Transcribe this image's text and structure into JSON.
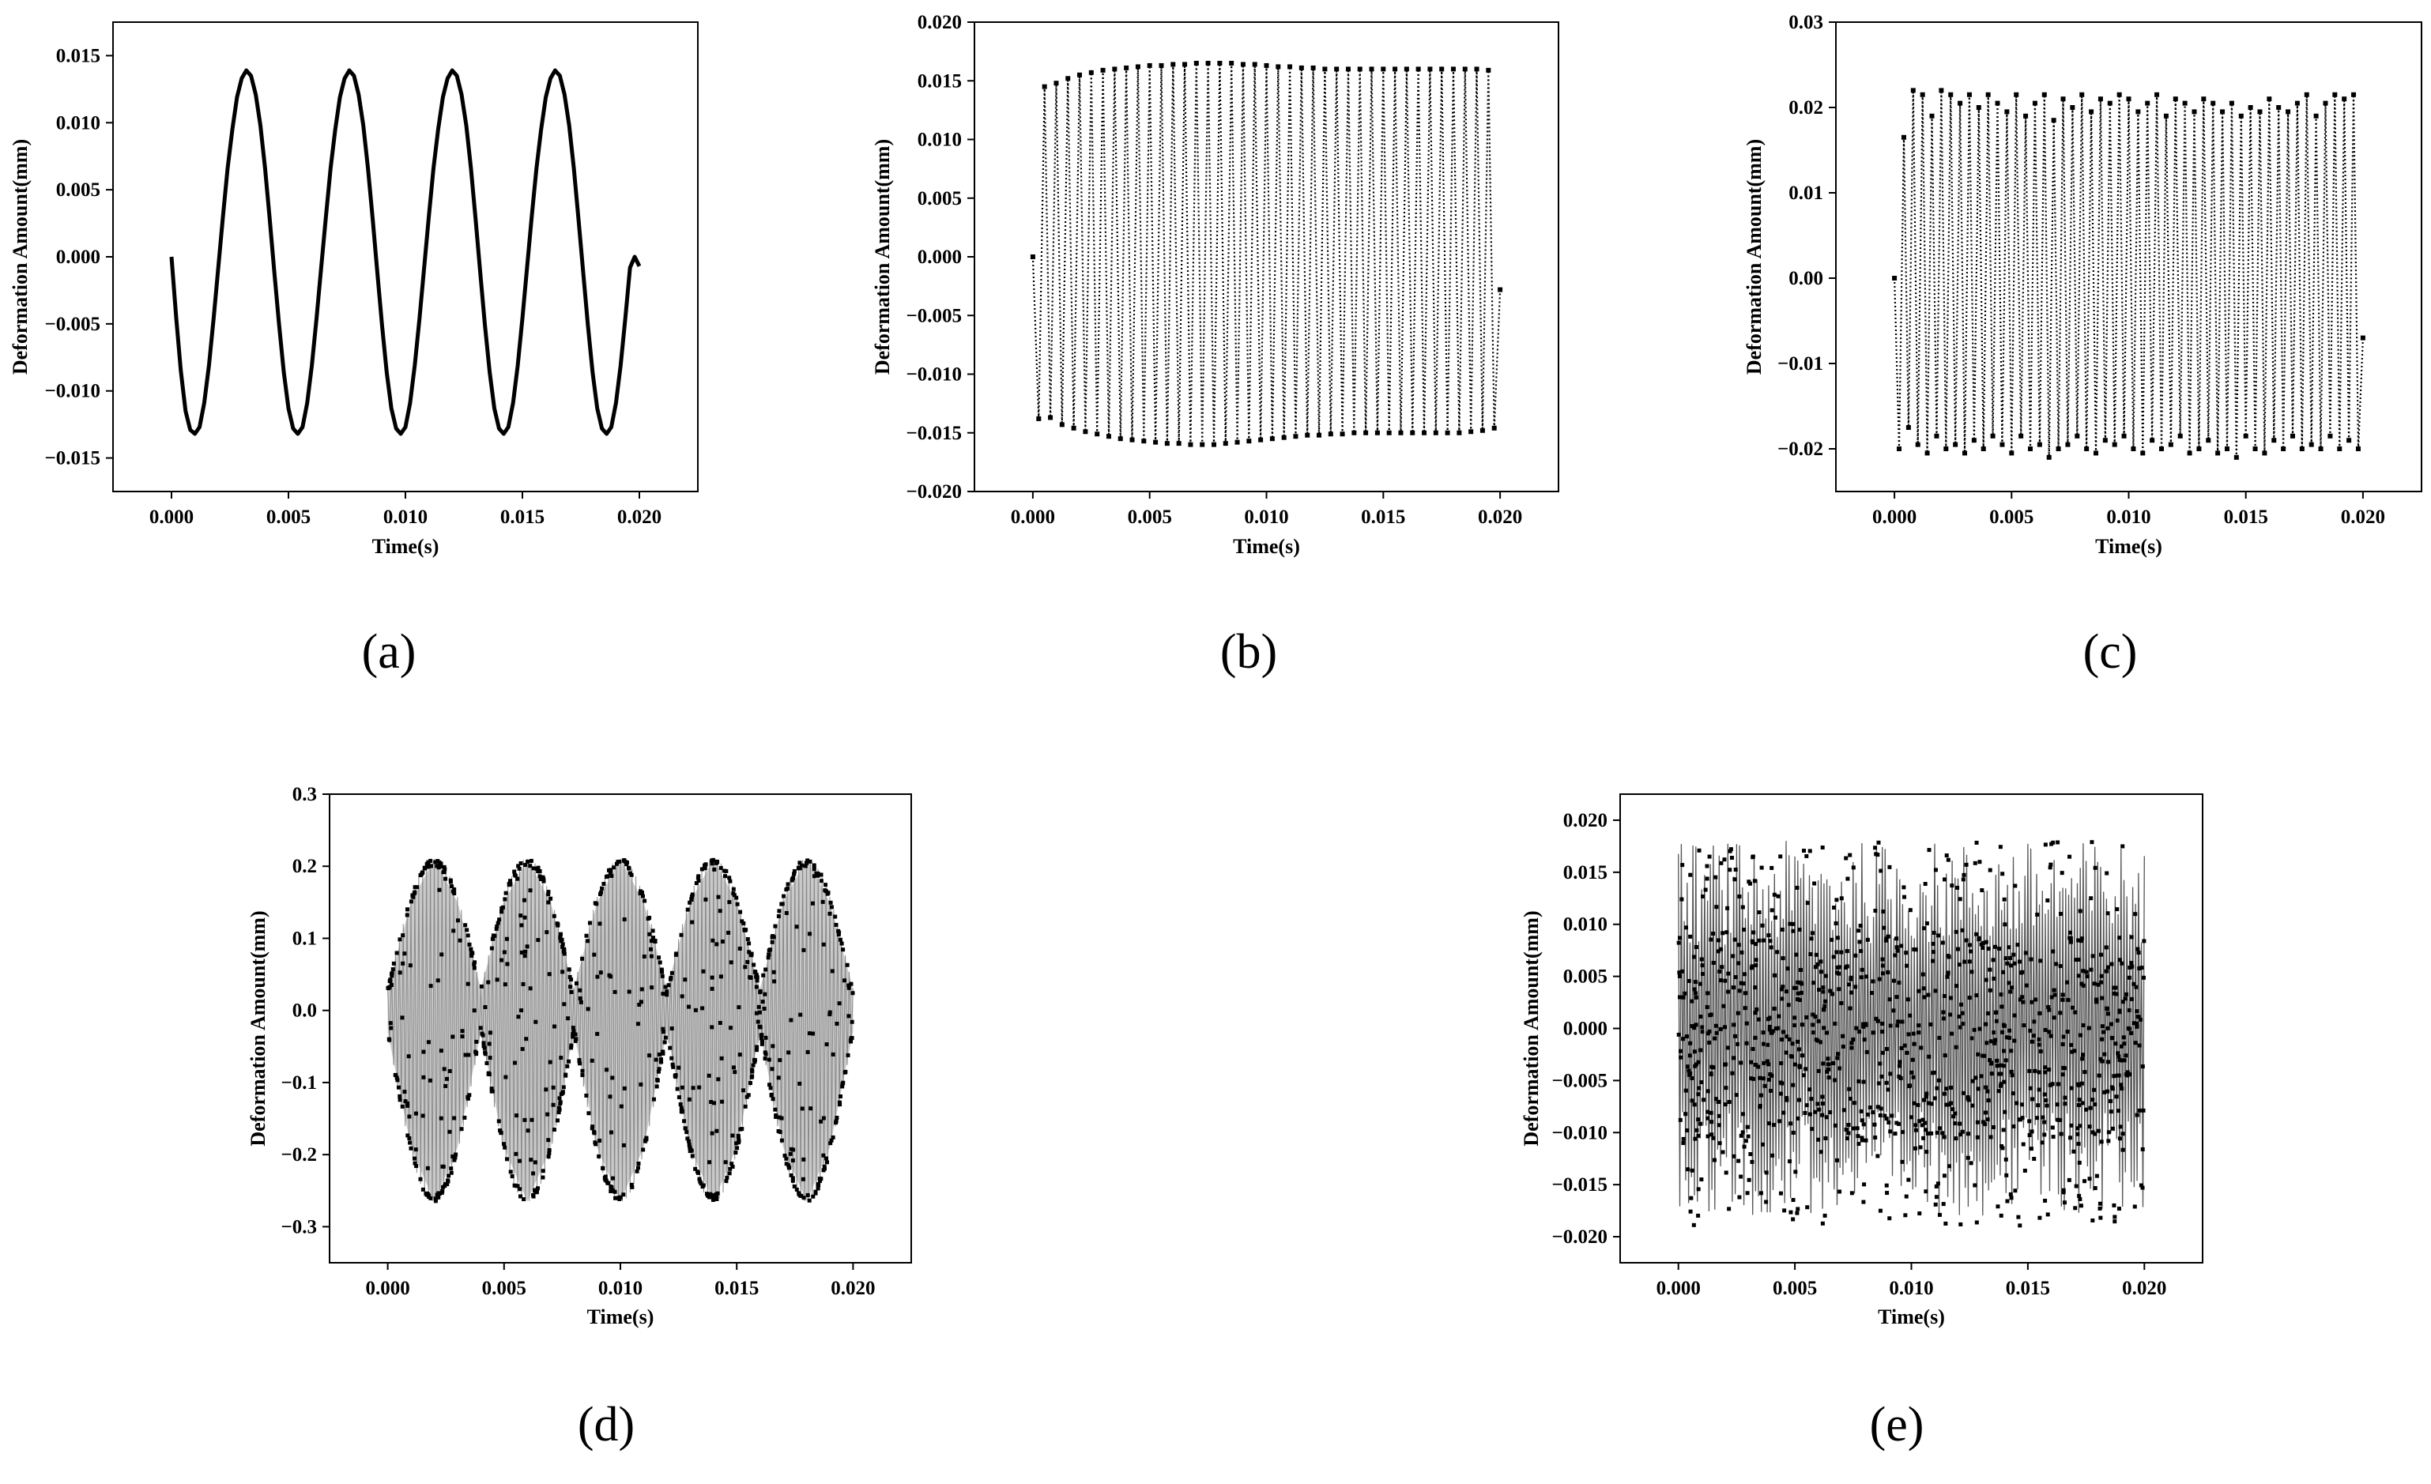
{
  "figure": {
    "panels": [
      "(a)",
      "(b)",
      "(c)",
      "(d)",
      "(e)"
    ]
  },
  "chart_data": [
    {
      "id": "a",
      "type": "line",
      "panel_label": "(a)",
      "xlabel": "Time(s)",
      "ylabel": "Deformation Amount(mm)",
      "xlim": [
        -0.0025,
        0.0225
      ],
      "ylim": [
        -0.0175,
        0.0175
      ],
      "xticks": [
        0.0,
        0.005,
        0.01,
        0.015,
        0.02
      ],
      "xtick_labels": [
        "0.000",
        "0.005",
        "0.010",
        "0.015",
        "0.020"
      ],
      "yticks": [
        -0.015,
        -0.01,
        -0.005,
        0.0,
        0.005,
        0.01,
        0.015
      ],
      "ytick_labels": [
        "−0.015",
        "−0.010",
        "−0.005",
        "0.000",
        "0.005",
        "0.010",
        "0.015"
      ],
      "grid": false,
      "series": [
        {
          "style": "solid-line",
          "color": "#000000",
          "x": [
            0.0,
            0.0002,
            0.0004,
            0.0006,
            0.0008,
            0.001,
            0.0012,
            0.0014,
            0.0016,
            0.0018,
            0.002,
            0.0022,
            0.0024,
            0.0026,
            0.0028,
            0.003,
            0.0032,
            0.0034,
            0.0036,
            0.0038,
            0.004,
            0.0042,
            0.0044,
            0.0046,
            0.0048,
            0.005,
            0.0052,
            0.0054,
            0.0056,
            0.0058,
            0.006,
            0.0062,
            0.0064,
            0.0066,
            0.0068,
            0.007,
            0.0072,
            0.0074,
            0.0076,
            0.0078,
            0.008,
            0.0082,
            0.0084,
            0.0086,
            0.0088,
            0.009,
            0.0092,
            0.0094,
            0.0096,
            0.0098,
            0.01,
            0.0102,
            0.0104,
            0.0106,
            0.0108,
            0.011,
            0.0112,
            0.0114,
            0.0116,
            0.0118,
            0.012,
            0.0122,
            0.0124,
            0.0126,
            0.0128,
            0.013,
            0.0132,
            0.0134,
            0.0136,
            0.0138,
            0.014,
            0.0142,
            0.0144,
            0.0146,
            0.0148,
            0.015,
            0.0152,
            0.0154,
            0.0156,
            0.0158,
            0.016,
            0.0162,
            0.0164,
            0.0166,
            0.0168,
            0.017,
            0.0172,
            0.0174,
            0.0176,
            0.0178,
            0.018,
            0.0182,
            0.0184,
            0.0186,
            0.0188,
            0.019,
            0.0192,
            0.0194,
            0.0196,
            0.0198,
            0.02
          ],
          "y": [
            0.0,
            -0.0045,
            -0.0085,
            -0.0115,
            -0.0129,
            -0.0132,
            -0.0127,
            -0.0109,
            -0.0081,
            -0.0046,
            -0.0008,
            0.003,
            0.0066,
            0.0095,
            0.0119,
            0.0133,
            0.0139,
            0.0135,
            0.0121,
            0.0098,
            0.0066,
            0.0028,
            -0.0012,
            -0.0051,
            -0.0086,
            -0.0113,
            -0.0128,
            -0.0132,
            -0.0127,
            -0.0109,
            -0.0081,
            -0.0046,
            -0.0008,
            0.003,
            0.0066,
            0.0095,
            0.0119,
            0.0133,
            0.0139,
            0.0135,
            0.0121,
            0.0098,
            0.0066,
            0.0028,
            -0.0012,
            -0.0051,
            -0.0086,
            -0.0113,
            -0.0128,
            -0.0132,
            -0.0127,
            -0.0109,
            -0.0081,
            -0.0046,
            -0.0008,
            0.003,
            0.0066,
            0.0095,
            0.0119,
            0.0133,
            0.0139,
            0.0135,
            0.0121,
            0.0098,
            0.0066,
            0.0028,
            -0.0012,
            -0.0051,
            -0.0086,
            -0.0113,
            -0.0128,
            -0.0132,
            -0.0127,
            -0.0109,
            -0.0081,
            -0.0046,
            -0.0008,
            0.003,
            0.0066,
            0.0095,
            0.0119,
            0.0133,
            0.0139,
            0.0135,
            0.0121,
            0.0098,
            0.0066,
            0.0028,
            -0.0012,
            -0.0051,
            -0.0086,
            -0.0113,
            -0.0128,
            -0.0132,
            -0.0127,
            -0.0109,
            -0.0081,
            -0.0046,
            -0.0008,
            0.0,
            -0.0007
          ]
        }
      ]
    },
    {
      "id": "b",
      "type": "line",
      "panel_label": "(b)",
      "xlabel": "Time(s)",
      "ylabel": "Deformation Amount(mm)",
      "xlim": [
        -0.0025,
        0.0225
      ],
      "ylim": [
        -0.02,
        0.02
      ],
      "xticks": [
        0.0,
        0.005,
        0.01,
        0.015,
        0.02
      ],
      "xtick_labels": [
        "0.000",
        "0.005",
        "0.010",
        "0.015",
        "0.020"
      ],
      "yticks": [
        -0.02,
        -0.015,
        -0.01,
        -0.005,
        0.0,
        0.005,
        0.01,
        0.015,
        0.02
      ],
      "ytick_labels": [
        "−0.020",
        "−0.015",
        "−0.010",
        "−0.005",
        "0.000",
        "0.005",
        "0.010",
        "0.015",
        "0.020"
      ],
      "grid": false,
      "series": [
        {
          "style": "dotted-markers",
          "color": "#000000",
          "x": [
            0.0,
            0.00025,
            0.0005,
            0.00075,
            0.001,
            0.00125,
            0.0015,
            0.00175,
            0.002,
            0.00225,
            0.0025,
            0.00275,
            0.003,
            0.00325,
            0.0035,
            0.00375,
            0.004,
            0.00425,
            0.0045,
            0.00475,
            0.005,
            0.00525,
            0.0055,
            0.00575,
            0.006,
            0.00625,
            0.0065,
            0.00675,
            0.007,
            0.00725,
            0.0075,
            0.00775,
            0.008,
            0.00825,
            0.0085,
            0.00875,
            0.009,
            0.00925,
            0.0095,
            0.00975,
            0.01,
            0.01025,
            0.0105,
            0.01075,
            0.011,
            0.01125,
            0.0115,
            0.01175,
            0.012,
            0.01225,
            0.0125,
            0.01275,
            0.013,
            0.01325,
            0.0135,
            0.01375,
            0.014,
            0.01425,
            0.0145,
            0.01475,
            0.015,
            0.01525,
            0.0155,
            0.01575,
            0.016,
            0.01625,
            0.0165,
            0.01675,
            0.017,
            0.01725,
            0.0175,
            0.01775,
            0.018,
            0.01825,
            0.0185,
            0.01875,
            0.019,
            0.01925,
            0.0195,
            0.01975,
            0.02
          ],
          "y": [
            0.0,
            -0.0138,
            0.0145,
            -0.0137,
            0.0148,
            -0.0143,
            0.0152,
            -0.0146,
            0.0155,
            -0.0149,
            0.0157,
            -0.0151,
            0.0159,
            -0.0153,
            0.016,
            -0.0155,
            0.0161,
            -0.0156,
            0.0162,
            -0.0157,
            0.0163,
            -0.0158,
            0.0163,
            -0.0159,
            0.0164,
            -0.0159,
            0.0164,
            -0.016,
            0.0165,
            -0.016,
            0.0165,
            -0.016,
            0.0165,
            -0.0159,
            0.0165,
            -0.0158,
            0.0164,
            -0.0157,
            0.0164,
            -0.0156,
            0.0163,
            -0.0155,
            0.0162,
            -0.0154,
            0.0162,
            -0.0153,
            0.0161,
            -0.0152,
            0.0161,
            -0.0152,
            0.016,
            -0.0151,
            0.016,
            -0.0151,
            0.016,
            -0.015,
            0.016,
            -0.015,
            0.016,
            -0.015,
            0.016,
            -0.015,
            0.016,
            -0.015,
            0.016,
            -0.015,
            0.016,
            -0.015,
            0.016,
            -0.015,
            0.016,
            -0.015,
            0.016,
            -0.015,
            0.016,
            -0.0149,
            0.016,
            -0.0148,
            0.0159,
            -0.0146,
            -0.0028
          ]
        }
      ]
    },
    {
      "id": "c",
      "type": "line",
      "panel_label": "(c)",
      "xlabel": "Time(s)",
      "ylabel": "Deformation Amount(mm)",
      "xlim": [
        -0.0025,
        0.0225
      ],
      "ylim": [
        -0.025,
        0.03
      ],
      "xticks": [
        0.0,
        0.005,
        0.01,
        0.015,
        0.02
      ],
      "xtick_labels": [
        "0.000",
        "0.005",
        "0.010",
        "0.015",
        "0.020"
      ],
      "yticks": [
        -0.02,
        -0.01,
        0.0,
        0.01,
        0.02,
        0.03
      ],
      "ytick_labels": [
        "−0.02",
        "−0.01",
        "0.00",
        "0.01",
        "0.02",
        "0.03"
      ],
      "grid": false,
      "series": [
        {
          "style": "dotted-markers",
          "color": "#000000",
          "x": [
            0.0,
            0.0002,
            0.0004,
            0.0006,
            0.0008,
            0.001,
            0.0012,
            0.0014,
            0.0016,
            0.0018,
            0.002,
            0.0022,
            0.0024,
            0.0026,
            0.0028,
            0.003,
            0.0032,
            0.0034,
            0.0036,
            0.0038,
            0.004,
            0.0042,
            0.0044,
            0.0046,
            0.0048,
            0.005,
            0.0052,
            0.0054,
            0.0056,
            0.0058,
            0.006,
            0.0062,
            0.0064,
            0.0066,
            0.0068,
            0.007,
            0.0072,
            0.0074,
            0.0076,
            0.0078,
            0.008,
            0.0082,
            0.0084,
            0.0086,
            0.0088,
            0.009,
            0.0092,
            0.0094,
            0.0096,
            0.0098,
            0.01,
            0.0102,
            0.0104,
            0.0106,
            0.0108,
            0.011,
            0.0112,
            0.0114,
            0.0116,
            0.0118,
            0.012,
            0.0122,
            0.0124,
            0.0126,
            0.0128,
            0.013,
            0.0132,
            0.0134,
            0.0136,
            0.0138,
            0.014,
            0.0142,
            0.0144,
            0.0146,
            0.0148,
            0.015,
            0.0152,
            0.0154,
            0.0156,
            0.0158,
            0.016,
            0.0162,
            0.0164,
            0.0166,
            0.0168,
            0.017,
            0.0172,
            0.0174,
            0.0176,
            0.0178,
            0.018,
            0.0182,
            0.0184,
            0.0186,
            0.0188,
            0.019,
            0.0192,
            0.0194,
            0.0196,
            0.0198,
            0.02
          ],
          "y": [
            0.0,
            -0.02,
            0.0165,
            -0.0175,
            0.022,
            -0.0195,
            0.0215,
            -0.0205,
            0.019,
            -0.0185,
            0.022,
            -0.02,
            0.0215,
            -0.0195,
            0.0205,
            -0.0205,
            0.0215,
            -0.019,
            0.02,
            -0.02,
            0.0215,
            -0.0185,
            0.0205,
            -0.0195,
            0.0195,
            -0.0205,
            0.0215,
            -0.0185,
            0.019,
            -0.02,
            0.0205,
            -0.0195,
            0.0215,
            -0.021,
            0.0185,
            -0.02,
            0.021,
            -0.0195,
            0.02,
            -0.0185,
            0.0215,
            -0.02,
            0.0195,
            -0.0205,
            0.021,
            -0.019,
            0.0205,
            -0.0195,
            0.0215,
            -0.0185,
            0.021,
            -0.02,
            0.0195,
            -0.0205,
            0.0205,
            -0.019,
            0.0215,
            -0.02,
            0.019,
            -0.0195,
            0.021,
            -0.0185,
            0.0205,
            -0.0205,
            0.0195,
            -0.02,
            0.021,
            -0.019,
            0.0205,
            -0.0205,
            0.0195,
            -0.02,
            0.0205,
            -0.021,
            0.019,
            -0.0185,
            0.02,
            -0.02,
            0.0195,
            -0.0205,
            0.021,
            -0.019,
            0.02,
            -0.02,
            0.0195,
            -0.0185,
            0.0205,
            -0.02,
            0.0215,
            -0.0195,
            0.019,
            -0.02,
            0.0205,
            -0.0185,
            0.0215,
            -0.02,
            0.021,
            -0.019,
            0.0215,
            -0.02,
            -0.007
          ]
        }
      ]
    },
    {
      "id": "d",
      "type": "line",
      "panel_label": "(d)",
      "xlabel": "Time(s)",
      "ylabel": "Deformation Amount(mm)",
      "xlim": [
        -0.0025,
        0.0225
      ],
      "ylim": [
        -0.35,
        0.3
      ],
      "xticks": [
        0.0,
        0.005,
        0.01,
        0.015,
        0.02
      ],
      "xtick_labels": [
        "0.000",
        "0.005",
        "0.010",
        "0.015",
        "0.020"
      ],
      "yticks": [
        -0.3,
        -0.2,
        -0.1,
        0.0,
        0.1,
        0.2,
        0.3
      ],
      "ytick_labels": [
        "−0.3",
        "−0.2",
        "−0.1",
        "0.0",
        "0.1",
        "0.2",
        "0.3"
      ],
      "grid": false,
      "series": [
        {
          "style": "dense-oscillation-envelope",
          "color": "#000000",
          "envelope_period_s": 0.004,
          "x_range": [
            0.0,
            0.02
          ],
          "upper_envelope_max": 0.21,
          "lower_envelope_min": -0.265,
          "envelope_x": [
            0.0,
            0.001,
            0.002,
            0.003,
            0.004,
            0.005,
            0.006,
            0.007,
            0.008,
            0.009,
            0.01,
            0.011,
            0.012,
            0.013,
            0.014,
            0.015,
            0.016,
            0.017,
            0.018,
            0.019,
            0.02
          ],
          "envelope_upper": [
            0.03,
            0.15,
            0.21,
            0.15,
            0.03,
            0.15,
            0.21,
            0.15,
            0.03,
            0.15,
            0.21,
            0.15,
            0.03,
            0.15,
            0.21,
            0.15,
            0.03,
            0.15,
            0.21,
            0.15,
            0.03
          ],
          "envelope_lower": [
            -0.03,
            -0.19,
            -0.265,
            -0.19,
            -0.03,
            -0.19,
            -0.265,
            -0.19,
            -0.03,
            -0.19,
            -0.265,
            -0.19,
            -0.03,
            -0.19,
            -0.265,
            -0.19,
            -0.03,
            -0.19,
            -0.265,
            -0.19,
            -0.03
          ]
        }
      ]
    },
    {
      "id": "e",
      "type": "line",
      "panel_label": "(e)",
      "xlabel": "Time(s)",
      "ylabel": "Deformation Amount(mm)",
      "xlim": [
        -0.0025,
        0.0225
      ],
      "ylim": [
        -0.0225,
        0.0225
      ],
      "xticks": [
        0.0,
        0.005,
        0.01,
        0.015,
        0.02
      ],
      "xtick_labels": [
        "0.000",
        "0.005",
        "0.010",
        "0.015",
        "0.020"
      ],
      "yticks": [
        -0.02,
        -0.015,
        -0.01,
        -0.005,
        0.0,
        0.005,
        0.01,
        0.015,
        0.02
      ],
      "ytick_labels": [
        "−0.020",
        "−0.015",
        "−0.010",
        "−0.005",
        "0.000",
        "0.005",
        "0.010",
        "0.015",
        "0.020"
      ],
      "grid": false,
      "series": [
        {
          "style": "dense-noise-band",
          "color": "#000000",
          "x_range": [
            0.0,
            0.02
          ],
          "approx_max": 0.018,
          "approx_min": -0.019
        }
      ]
    }
  ]
}
